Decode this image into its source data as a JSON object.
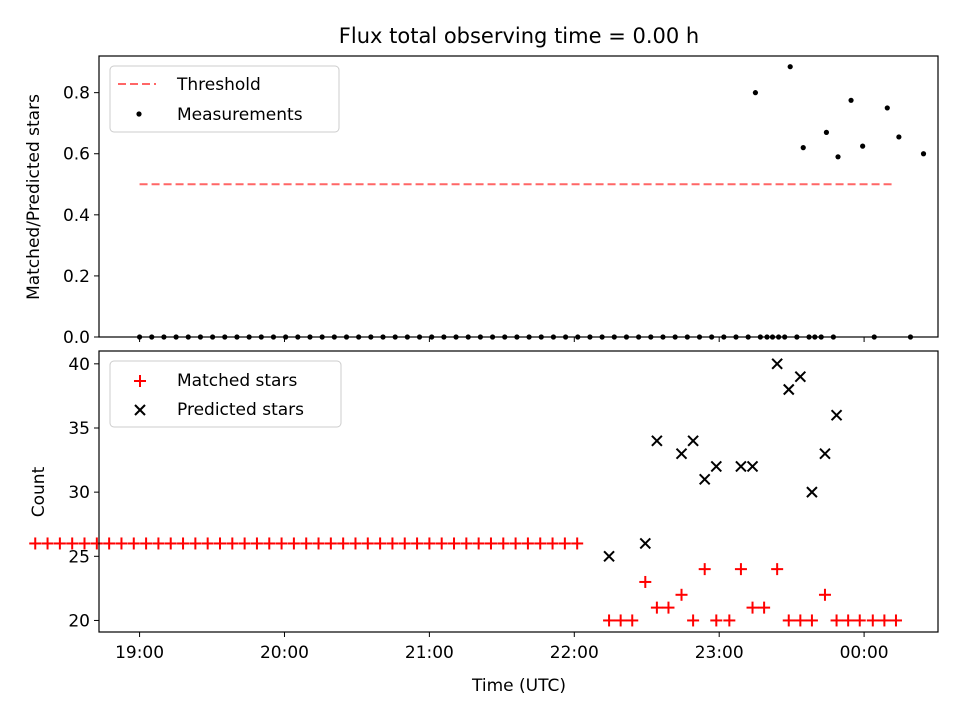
{
  "chart_data": [
    {
      "type": "scatter",
      "title": "Flux total observing time = 0.00 h",
      "xlabel": "",
      "ylabel": "Matched/Predicted stars",
      "x_unit": "hours since 18:00 UTC",
      "xlim": [
        0.72,
        6.51
      ],
      "ylim": [
        0,
        0.92
      ],
      "yticks": [
        0.0,
        0.2,
        0.4,
        0.6,
        0.8
      ],
      "ytick_labels": [
        "0.0",
        "0.2",
        "0.4",
        "0.6",
        "0.8"
      ],
      "legend": {
        "position": "top-left",
        "entries": [
          "Threshold",
          "Measurements"
        ]
      },
      "threshold": {
        "name": "Threshold",
        "value": 0.5,
        "x_range": [
          1.0,
          6.19
        ],
        "color": "#ff6666"
      },
      "series": [
        {
          "name": "Measurements",
          "marker": "dot",
          "color": "#000000",
          "points": [
            [
              1.0,
              0
            ],
            [
              1.084,
              0
            ],
            [
              1.168,
              0
            ],
            [
              1.252,
              0
            ],
            [
              1.336,
              0
            ],
            [
              1.42,
              0
            ],
            [
              1.504,
              0
            ],
            [
              1.588,
              0
            ],
            [
              1.672,
              0
            ],
            [
              1.756,
              0
            ],
            [
              1.84,
              0
            ],
            [
              1.924,
              0
            ],
            [
              2.008,
              0
            ],
            [
              2.092,
              0
            ],
            [
              2.176,
              0
            ],
            [
              2.26,
              0
            ],
            [
              2.344,
              0
            ],
            [
              2.428,
              0
            ],
            [
              2.512,
              0
            ],
            [
              2.596,
              0
            ],
            [
              2.68,
              0
            ],
            [
              2.764,
              0
            ],
            [
              2.848,
              0
            ],
            [
              2.932,
              0
            ],
            [
              3.016,
              0
            ],
            [
              3.1,
              0
            ],
            [
              3.184,
              0
            ],
            [
              3.268,
              0
            ],
            [
              3.352,
              0
            ],
            [
              3.436,
              0
            ],
            [
              3.52,
              0
            ],
            [
              3.604,
              0
            ],
            [
              3.688,
              0
            ],
            [
              3.772,
              0
            ],
            [
              3.856,
              0
            ],
            [
              3.94,
              0
            ],
            [
              4.024,
              0
            ],
            [
              4.108,
              0
            ],
            [
              4.192,
              0
            ],
            [
              4.276,
              0
            ],
            [
              4.36,
              0
            ],
            [
              4.444,
              0
            ],
            [
              4.528,
              0
            ],
            [
              4.612,
              0
            ],
            [
              4.696,
              0
            ],
            [
              4.78,
              0
            ],
            [
              4.864,
              0
            ],
            [
              4.948,
              0
            ],
            [
              5.032,
              0
            ],
            [
              5.116,
              0
            ],
            [
              5.2,
              0
            ],
            [
              5.284,
              0
            ],
            [
              5.368,
              0
            ],
            [
              5.452,
              0
            ],
            [
              5.536,
              0
            ],
            [
              5.62,
              0
            ],
            [
              5.704,
              0
            ],
            [
              5.788,
              0
            ],
            [
              5.25,
              0.8
            ],
            [
              5.33,
              0
            ],
            [
              5.41,
              0
            ],
            [
              5.49,
              0.885
            ],
            [
              5.58,
              0.62
            ],
            [
              5.66,
              0
            ],
            [
              5.74,
              0.67
            ],
            [
              5.82,
              0.59
            ],
            [
              5.91,
              0.775
            ],
            [
              5.99,
              0.625
            ],
            [
              6.07,
              0
            ],
            [
              6.16,
              0.75
            ],
            [
              6.24,
              0.655
            ],
            [
              6.32,
              0
            ],
            [
              6.41,
              0.6
            ]
          ]
        }
      ]
    },
    {
      "type": "scatter",
      "title": "",
      "xlabel": "Time (UTC)",
      "ylabel": "Count",
      "xlim": [
        0.72,
        6.51
      ],
      "ylim": [
        19.1,
        41.0
      ],
      "yticks": [
        20,
        25,
        30,
        35,
        40
      ],
      "ytick_labels": [
        "20",
        "25",
        "30",
        "35",
        "40"
      ],
      "xticks": [
        1.0,
        2.0,
        3.0,
        4.0,
        5.0,
        6.0
      ],
      "xtick_labels": [
        "19:00",
        "20:00",
        "21:00",
        "22:00",
        "23:00",
        "00:00"
      ],
      "legend": {
        "position": "top-left",
        "entries": [
          "Matched stars",
          "Predicted stars"
        ]
      },
      "series": [
        {
          "name": "Matched stars",
          "marker": "plus",
          "color": "#ff0000",
          "points": [
            [
              0.28,
              26
            ],
            [
              0.365,
              26
            ],
            [
              0.45,
              26
            ],
            [
              0.535,
              26
            ],
            [
              0.62,
              26
            ],
            [
              0.705,
              26
            ],
            [
              0.79,
              26
            ],
            [
              0.875,
              26
            ],
            [
              0.96,
              26
            ],
            [
              1.045,
              26
            ],
            [
              1.13,
              26
            ],
            [
              1.215,
              26
            ],
            [
              1.3,
              26
            ],
            [
              1.385,
              26
            ],
            [
              1.47,
              26
            ],
            [
              1.555,
              26
            ],
            [
              1.64,
              26
            ],
            [
              1.725,
              26
            ],
            [
              1.81,
              26
            ],
            [
              1.895,
              26
            ],
            [
              1.98,
              26
            ],
            [
              2.065,
              26
            ],
            [
              2.15,
              26
            ],
            [
              2.235,
              26
            ],
            [
              2.32,
              26
            ],
            [
              2.405,
              26
            ],
            [
              2.49,
              26
            ],
            [
              2.575,
              26
            ],
            [
              2.66,
              26
            ],
            [
              2.745,
              26
            ],
            [
              2.83,
              26
            ],
            [
              2.915,
              26
            ],
            [
              3.0,
              26
            ],
            [
              3.085,
              26
            ],
            [
              3.17,
              26
            ],
            [
              3.255,
              26
            ],
            [
              3.34,
              26
            ],
            [
              3.425,
              26
            ],
            [
              3.51,
              26
            ],
            [
              3.595,
              26
            ],
            [
              3.68,
              26
            ],
            [
              3.765,
              26
            ],
            [
              3.85,
              26
            ],
            [
              3.935,
              26
            ],
            [
              4.02,
              26
            ],
            [
              4.24,
              20
            ],
            [
              4.32,
              20
            ],
            [
              4.4,
              20
            ],
            [
              4.49,
              23
            ],
            [
              4.57,
              21
            ],
            [
              4.65,
              21
            ],
            [
              4.74,
              22
            ],
            [
              4.82,
              20
            ],
            [
              4.9,
              24
            ],
            [
              4.98,
              20
            ],
            [
              5.07,
              20
            ],
            [
              5.15,
              24
            ],
            [
              5.23,
              21
            ],
            [
              5.31,
              21
            ],
            [
              5.4,
              24
            ],
            [
              5.48,
              20
            ],
            [
              5.56,
              20
            ],
            [
              5.64,
              20
            ],
            [
              5.73,
              22
            ],
            [
              5.81,
              20
            ],
            [
              5.89,
              20
            ],
            [
              5.97,
              20
            ],
            [
              6.06,
              20
            ],
            [
              6.14,
              20
            ],
            [
              6.22,
              20
            ]
          ]
        },
        {
          "name": "Predicted stars",
          "marker": "x",
          "color": "#000000",
          "points": [
            [
              4.24,
              25
            ],
            [
              4.49,
              26
            ],
            [
              4.57,
              34
            ],
            [
              4.74,
              33
            ],
            [
              4.82,
              34
            ],
            [
              4.9,
              31
            ],
            [
              4.98,
              32
            ],
            [
              5.15,
              32
            ],
            [
              5.23,
              32
            ],
            [
              5.4,
              40
            ],
            [
              5.48,
              38
            ],
            [
              5.56,
              39
            ],
            [
              5.64,
              30
            ],
            [
              5.73,
              33
            ],
            [
              5.81,
              36
            ]
          ]
        }
      ]
    }
  ]
}
